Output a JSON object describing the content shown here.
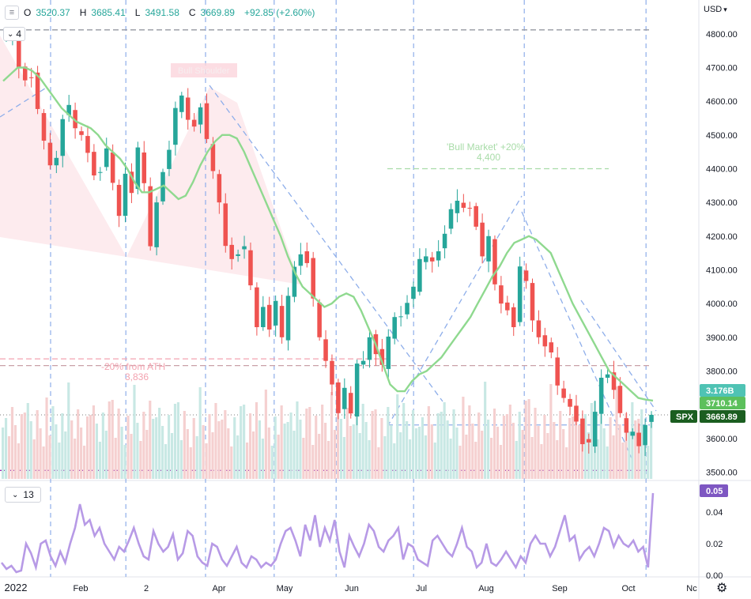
{
  "header": {
    "open_label": "O",
    "open": "3520.37",
    "high_label": "H",
    "high": "3685.41",
    "low_label": "L",
    "low": "3491.58",
    "close_label": "C",
    "close": "3669.89",
    "change": "+92.85 (+2.60%)",
    "indicator_count": "4",
    "currency": "USD",
    "volume_indicator_length": "13"
  },
  "price_axis": {
    "ticks": [
      "4800.00",
      "4700.00",
      "4600.00",
      "4500.00",
      "4400.00",
      "4300.00",
      "4200.00",
      "4100.00",
      "4000.00",
      "3900.00",
      "3800.00",
      "3700.00",
      "3600.00",
      "3500.00"
    ],
    "min": 3480,
    "max": 4830
  },
  "badges": {
    "volume": "3.176B",
    "ma": "3710.14",
    "symbol": "SPX",
    "price": "3669.89",
    "indicator": "0.05"
  },
  "indicator_axis": {
    "ticks": [
      "0.04",
      "0.02",
      "0.00"
    ],
    "min": 0,
    "max": 0.055
  },
  "time_axis": {
    "labels": [
      "2022",
      "Feb",
      "2",
      "Apr",
      "May",
      "Jun",
      "Jul",
      "Aug",
      "Sep",
      "Oct",
      "Nc"
    ],
    "label_positions": [
      0,
      23,
      42,
      62,
      83,
      104,
      124,
      146,
      167,
      188,
      208
    ]
  },
  "annotations": {
    "bull_market_label": "'Bull Market' +20%",
    "bull_market_value": "4,400",
    "ath_label": "-20% from ATH",
    "ath_value": "3,836",
    "top_label": "Bull Shoulder"
  },
  "colors": {
    "up": "#26a69a",
    "down": "#ef5350",
    "ma": "#8fd98f",
    "indicator": "#b79ae6",
    "level_dash": "#9598a1",
    "vert_dash": "#8eaeea",
    "purple_level": "#9c27b0",
    "volume_up": "#c8e8e4",
    "volume_down": "#f5d0d0"
  },
  "chart_data": {
    "type": "line",
    "title": "",
    "series": [
      {
        "name": "SPX",
        "values": [
          4796,
          4793,
          4700,
          4662,
          4670,
          4577,
          4483,
          4410,
          4432,
          4547,
          4589,
          4520,
          4500,
          4447,
          4380,
          4390,
          4460,
          4358,
          4260,
          4385,
          4328,
          4463,
          4357,
          4170,
          4300,
          4390,
          4456,
          4580,
          4617,
          4545,
          4525,
          4582,
          4488,
          4393,
          4300,
          4171,
          4132,
          4146,
          4170,
          4054,
          3930,
          3990,
          3923,
          4008,
          3900,
          4023,
          4109,
          4146,
          4120,
          4015,
          3900,
          3830,
          3760,
          3675,
          3750,
          3674,
          3822,
          3830,
          3900,
          3850,
          3818,
          3902,
          3960,
          3962,
          4002,
          4050,
          4132,
          4140,
          4125,
          4155,
          4207,
          4280,
          4305,
          4284,
          4283,
          4228,
          4140,
          4200,
          4057,
          4000,
          3980,
          3930,
          4110,
          4067,
          3950,
          3900,
          3873,
          3855,
          3757,
          3720,
          3694,
          3650,
          3583,
          3588,
          3679,
          3780,
          3790,
          3744,
          3675,
          3617,
          3620,
          3577,
          3640,
          3670
        ]
      },
      {
        "name": "MA",
        "values": [
          4660,
          4680,
          4700,
          4700,
          4690,
          4670,
          4640,
          4610,
          4580,
          4560,
          4540,
          4530,
          4520,
          4500,
          4470,
          4450,
          4430,
          4400,
          4360,
          4330,
          4330,
          4340,
          4350,
          4330,
          4310,
          4320,
          4360,
          4410,
          4450,
          4480,
          4500,
          4500,
          4490,
          4450,
          4400,
          4350,
          4300,
          4250,
          4200,
          4140,
          4090,
          4050,
          4030,
          4010,
          3990,
          4000,
          4020,
          4030,
          4020,
          3980,
          3930,
          3880,
          3820,
          3760,
          3740,
          3740,
          3770,
          3790,
          3800,
          3820,
          3840,
          3870,
          3900,
          3930,
          3960,
          4000,
          4040,
          4080,
          4110,
          4150,
          4180,
          4190,
          4200,
          4190,
          4170,
          4150,
          4100,
          4050,
          4000,
          3960,
          3920,
          3880,
          3840,
          3800,
          3780,
          3760,
          3740,
          3720,
          3715,
          3712
        ]
      }
    ],
    "indicator_values": [
      0.008,
      0.004,
      0.006,
      0.002,
      0.003,
      0.02,
      0.014,
      0.005,
      0.02,
      0.022,
      0.012,
      0.006,
      0.015,
      0.008,
      0.02,
      0.03,
      0.045,
      0.032,
      0.035,
      0.025,
      0.03,
      0.02,
      0.015,
      0.01,
      0.018,
      0.015,
      0.022,
      0.03,
      0.02,
      0.012,
      0.01,
      0.028,
      0.02,
      0.015,
      0.018,
      0.026,
      0.01,
      0.014,
      0.028,
      0.025,
      0.012,
      0.008,
      0.006,
      0.02,
      0.018,
      0.01,
      0.006,
      0.012,
      0.018,
      0.008,
      0.005,
      0.012,
      0.01,
      0.005,
      0.008,
      0.006,
      0.01,
      0.02,
      0.028,
      0.03,
      0.022,
      0.012,
      0.032,
      0.022,
      0.038,
      0.018,
      0.03,
      0.022,
      0.035,
      0.015,
      0.005,
      0.025,
      0.018,
      0.012,
      0.02,
      0.032,
      0.028,
      0.018,
      0.015,
      0.022,
      0.025,
      0.03,
      0.01,
      0.02,
      0.018,
      0.01,
      0.008,
      0.006,
      0.022,
      0.025,
      0.02,
      0.015,
      0.012,
      0.02,
      0.03,
      0.018,
      0.015,
      0.005,
      0.008,
      0.02,
      0.008,
      0.006,
      0.01,
      0.015,
      0.01,
      0.005,
      0.012,
      0.008,
      0.02,
      0.025,
      0.02,
      0.02,
      0.012,
      0.018,
      0.028,
      0.038,
      0.022,
      0.025,
      0.01,
      0.015,
      0.018,
      0.012,
      0.02,
      0.03,
      0.028,
      0.018,
      0.025,
      0.02,
      0.018,
      0.022,
      0.015,
      0.018,
      0.005,
      0.052
    ],
    "xlabel": "",
    "ylabel": "",
    "ylim": [
      3480,
      4830
    ],
    "grid": true,
    "legend": "top-left"
  }
}
